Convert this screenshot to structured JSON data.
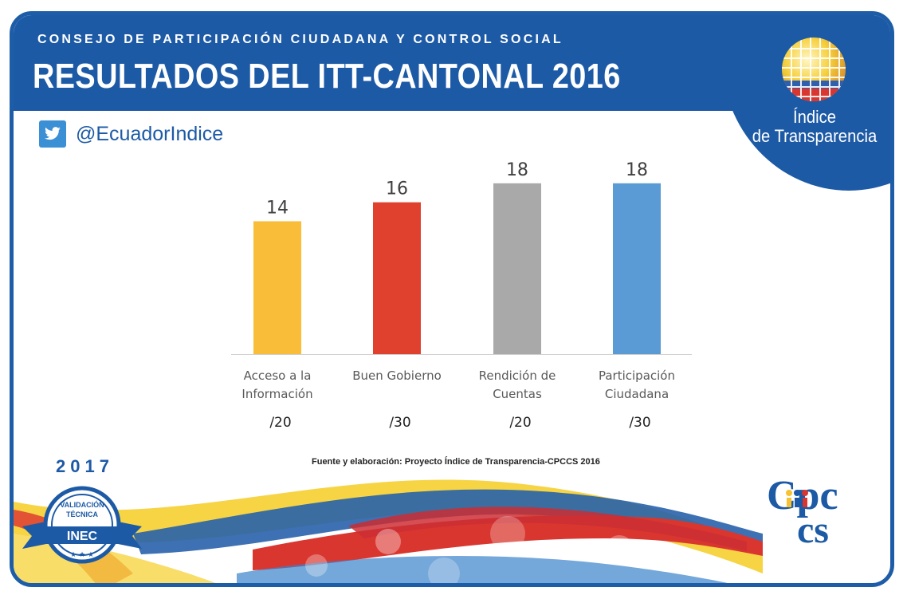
{
  "header": {
    "subtitle": "CONSEJO DE PARTICIPACIÓN CIUDADANA Y CONTROL SOCIAL",
    "title": "RESULTADOS DEL ITT-CANTONAL 2016"
  },
  "brand": {
    "line1": "Índice",
    "line2": "de Transparencia"
  },
  "social": {
    "icon": "twitter-icon",
    "handle": "@EcuadorIndice"
  },
  "chart_data": {
    "type": "bar",
    "title": "",
    "xlabel": "",
    "ylabel": "",
    "ylim": [
      0,
      20
    ],
    "grid": false,
    "categories": [
      {
        "line1": "Acceso a la",
        "line2": "Información",
        "max": "/20"
      },
      {
        "line1": "Buen Gobierno",
        "line2": "",
        "max": "/30"
      },
      {
        "line1": "Rendición de",
        "line2": "Cuentas",
        "max": "/20"
      },
      {
        "line1": "Participación",
        "line2": "Ciudadana",
        "max": "/30"
      }
    ],
    "values": [
      14,
      16,
      18,
      18
    ],
    "colors": [
      "#f9bd3a",
      "#e0412f",
      "#a9a9a9",
      "#5b9bd5"
    ]
  },
  "source": "Fuente y elaboración: Proyecto Índice de Transparencia-CPCCS 2016",
  "footer": {
    "year": "2017",
    "badge_line1": "VALIDACIÓN",
    "badge_line2": "TÉCNICA",
    "badge_org": "INEC",
    "logo_text_top": "Cpc",
    "logo_text_bottom": "cs"
  },
  "colors": {
    "primary_blue": "#1d5aa6",
    "twitter_blue": "#3b8fd4"
  }
}
